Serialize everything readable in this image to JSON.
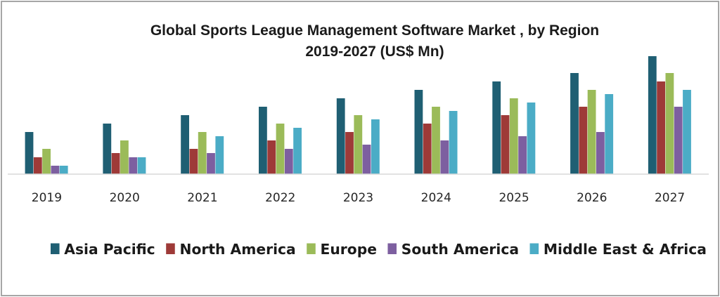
{
  "chart_data": {
    "type": "bar",
    "title": "Global Sports League Management Software Market  , by Region",
    "subtitle": "2019-2027 (US$ Mn)",
    "xlabel": "",
    "ylabel": "",
    "ylim": [
      0,
      14
    ],
    "grid": false,
    "legend_position": "bottom",
    "categories": [
      "2019",
      "2020",
      "2021",
      "2022",
      "2023",
      "2024",
      "2025",
      "2026",
      "2027"
    ],
    "series": [
      {
        "name": "Asia Pacific",
        "color": "#1f5f73",
        "values": [
          5.0,
          6.0,
          7.0,
          8.0,
          9.0,
          10.0,
          11.0,
          12.0,
          14.0
        ]
      },
      {
        "name": "North America",
        "color": "#9e3a38",
        "values": [
          2.0,
          2.5,
          3.0,
          4.0,
          5.0,
          6.0,
          7.0,
          8.0,
          11.0
        ]
      },
      {
        "name": "Europe",
        "color": "#9bbb59",
        "values": [
          3.0,
          4.0,
          5.0,
          6.0,
          7.0,
          8.0,
          9.0,
          10.0,
          12.0
        ]
      },
      {
        "name": "South America",
        "color": "#7d5fa0",
        "values": [
          1.0,
          2.0,
          2.5,
          3.0,
          3.5,
          4.0,
          4.5,
          5.0,
          8.0
        ]
      },
      {
        "name": "Middle East & Africa",
        "color": "#4bacc6",
        "values": [
          1.0,
          2.0,
          4.5,
          5.5,
          6.5,
          7.5,
          8.5,
          9.5,
          10.0
        ]
      }
    ]
  }
}
